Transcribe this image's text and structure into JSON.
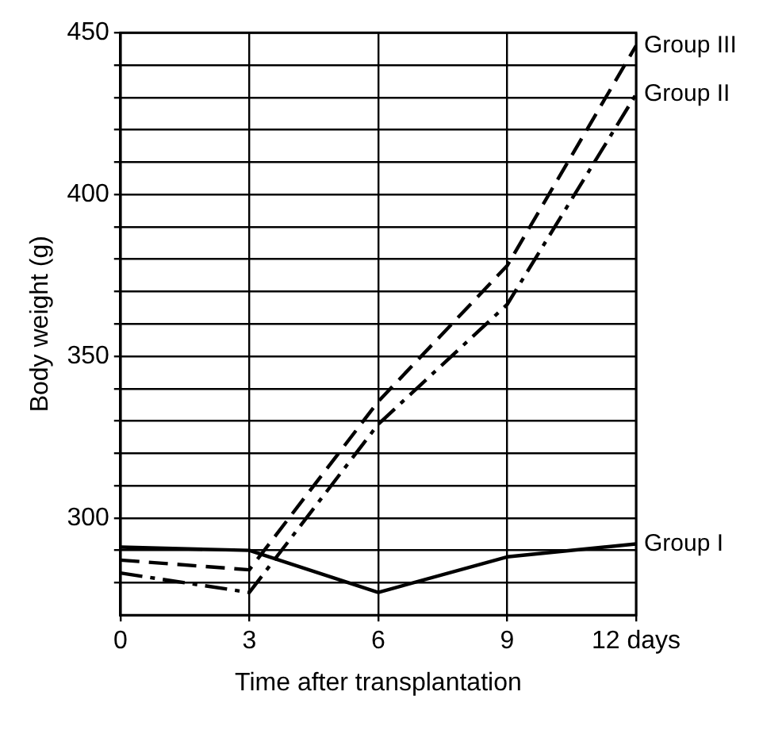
{
  "chart_data": {
    "type": "line",
    "xlabel": "Time after transplantation",
    "ylabel": "Body weight (g)",
    "x": [
      0,
      3,
      6,
      9,
      12
    ],
    "series": [
      {
        "name": "Group I",
        "color": "#000000",
        "line_style": "solid",
        "values": [
          291,
          290,
          277,
          288,
          292
        ]
      },
      {
        "name": "Group II",
        "color": "#000000",
        "line_style": "dashdot",
        "values": [
          283,
          277,
          329,
          366,
          431
        ]
      },
      {
        "name": "Group III",
        "color": "#000000",
        "line_style": "dashed",
        "values": [
          287,
          284,
          336,
          378,
          446
        ]
      }
    ],
    "xlim": [
      0,
      12
    ],
    "xticks": [
      0,
      3,
      6,
      9,
      {
        "value": 12,
        "label": "12 days"
      }
    ],
    "ylim": [
      270,
      450
    ],
    "yticks": [
      {
        "value": 280,
        "label": null
      },
      {
        "value": 290,
        "label": null
      },
      300,
      {
        "value": 310,
        "label": null
      },
      {
        "value": 320,
        "label": null
      },
      {
        "value": 330,
        "label": null
      },
      {
        "value": 340,
        "label": null
      },
      350,
      {
        "value": 360,
        "label": null
      },
      {
        "value": 370,
        "label": null
      },
      {
        "value": 380,
        "label": null
      },
      {
        "value": 390,
        "label": null
      },
      400,
      {
        "value": 410,
        "label": null
      },
      {
        "value": 420,
        "label": null
      },
      {
        "value": 430,
        "label": null
      },
      {
        "value": 440,
        "label": null
      },
      450
    ],
    "grid": true,
    "legend": false,
    "marker": "none"
  }
}
